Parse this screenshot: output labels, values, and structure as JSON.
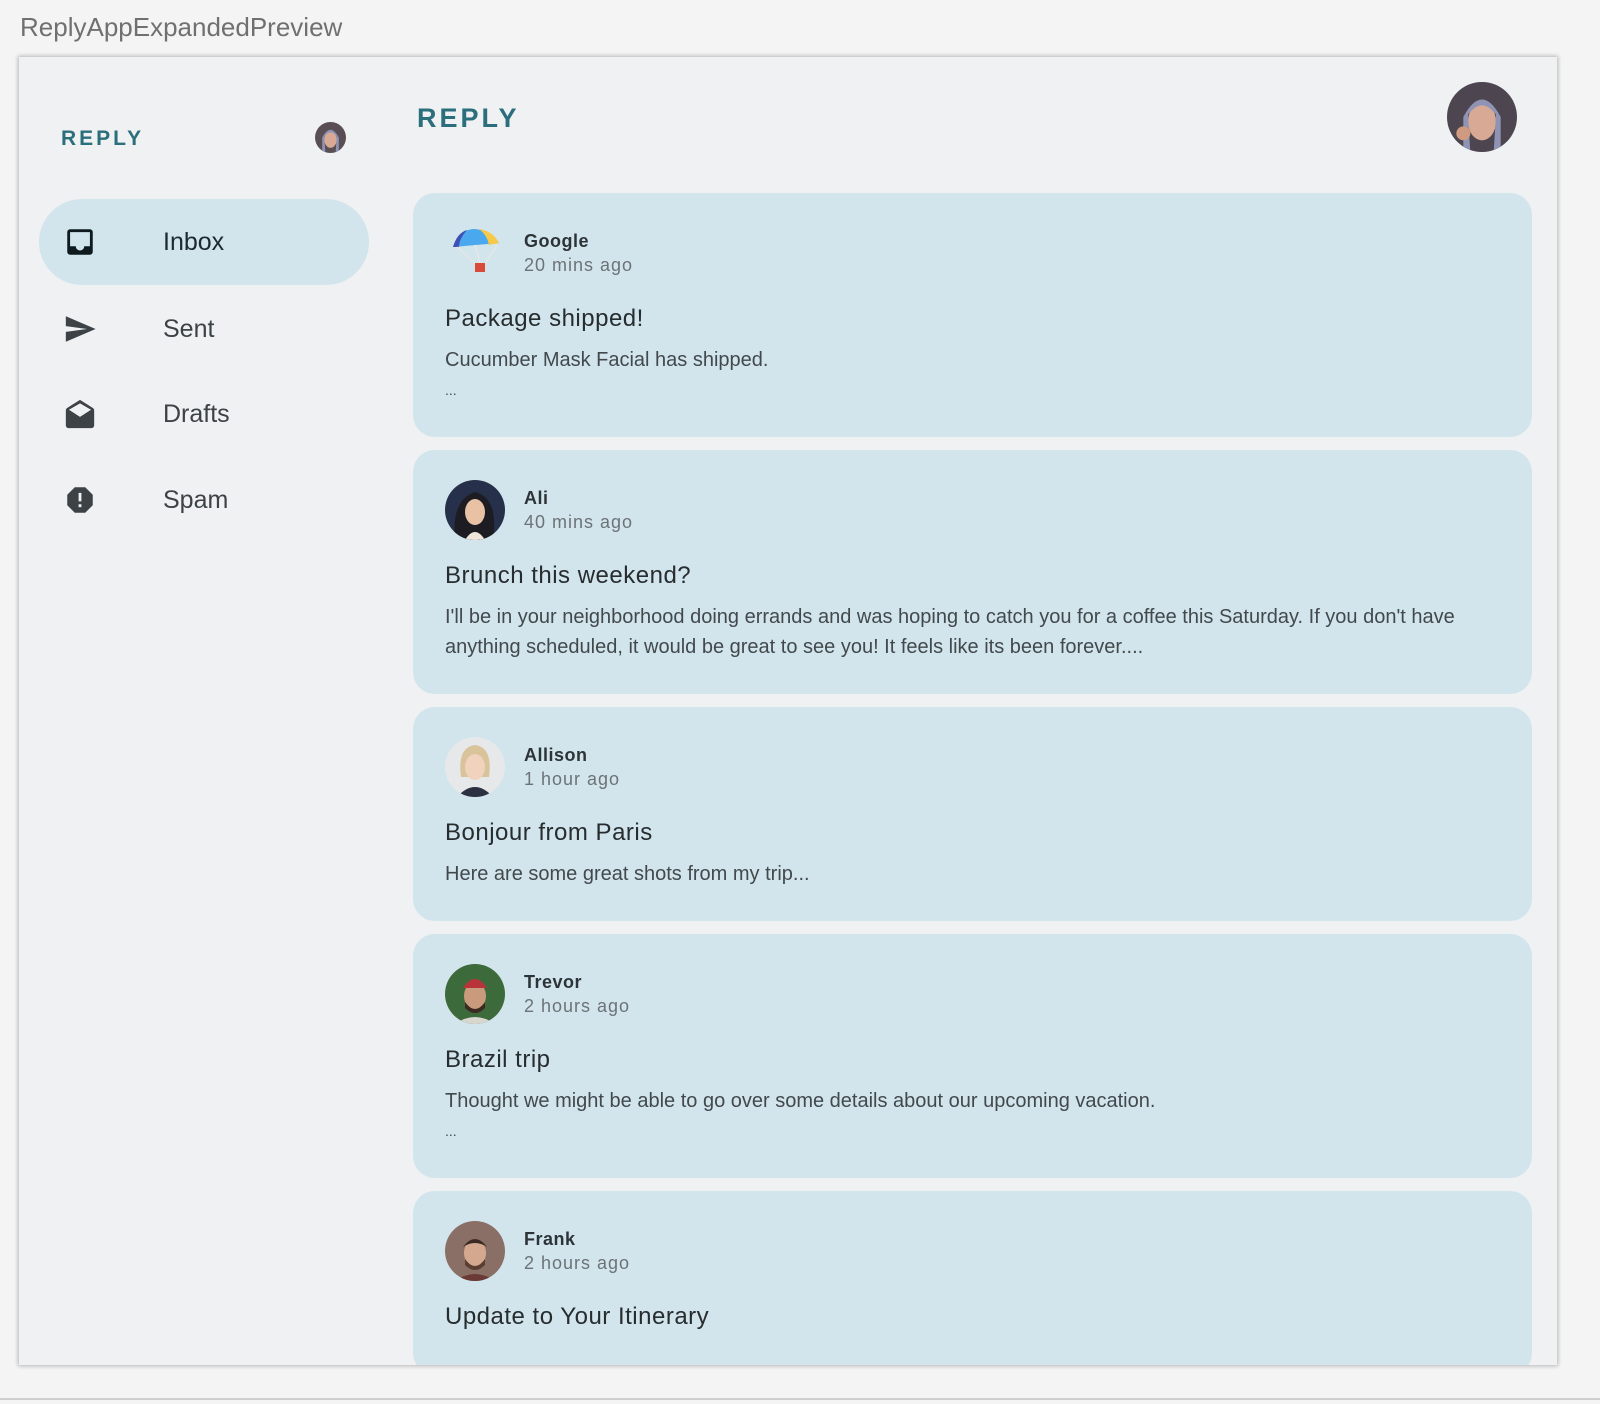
{
  "preview_title": "ReplyAppExpandedPreview",
  "nav_rail": {
    "brand": "REPLY",
    "items": [
      {
        "label": "Inbox",
        "icon": "inbox-icon",
        "active": true
      },
      {
        "label": "Sent",
        "icon": "send-icon",
        "active": false
      },
      {
        "label": "Drafts",
        "icon": "drafts-icon",
        "active": false
      },
      {
        "label": "Spam",
        "icon": "report-icon",
        "active": false
      }
    ]
  },
  "main": {
    "brand": "REPLY",
    "emails": [
      {
        "sender": "Google",
        "time": "20 mins ago",
        "subject": "Package shipped!",
        "body": "Cucumber Mask Facial has shipped.",
        "ellipsis": "..."
      },
      {
        "sender": "Ali",
        "time": "40 mins ago",
        "subject": "Brunch this weekend?",
        "body": "I'll be in your neighborhood doing errands and was hoping to catch you for a coffee this Saturday. If you don't have anything scheduled, it would be great to see you! It feels like its been forever....",
        "ellipsis": ""
      },
      {
        "sender": "Allison",
        "time": "1 hour ago",
        "subject": "Bonjour from Paris",
        "body": "Here are some great shots from my trip...",
        "ellipsis": ""
      },
      {
        "sender": "Trevor",
        "time": "2 hours ago",
        "subject": "Brazil trip",
        "body": "Thought we might be able to go over some details about our upcoming vacation.",
        "ellipsis": "..."
      },
      {
        "sender": "Frank",
        "time": "2 hours ago",
        "subject": "Update to Your Itinerary",
        "body": "",
        "ellipsis": ""
      }
    ]
  },
  "colors": {
    "accent": "#2b6f7c",
    "card": "#d2e5ec",
    "background": "#eff1f3"
  }
}
